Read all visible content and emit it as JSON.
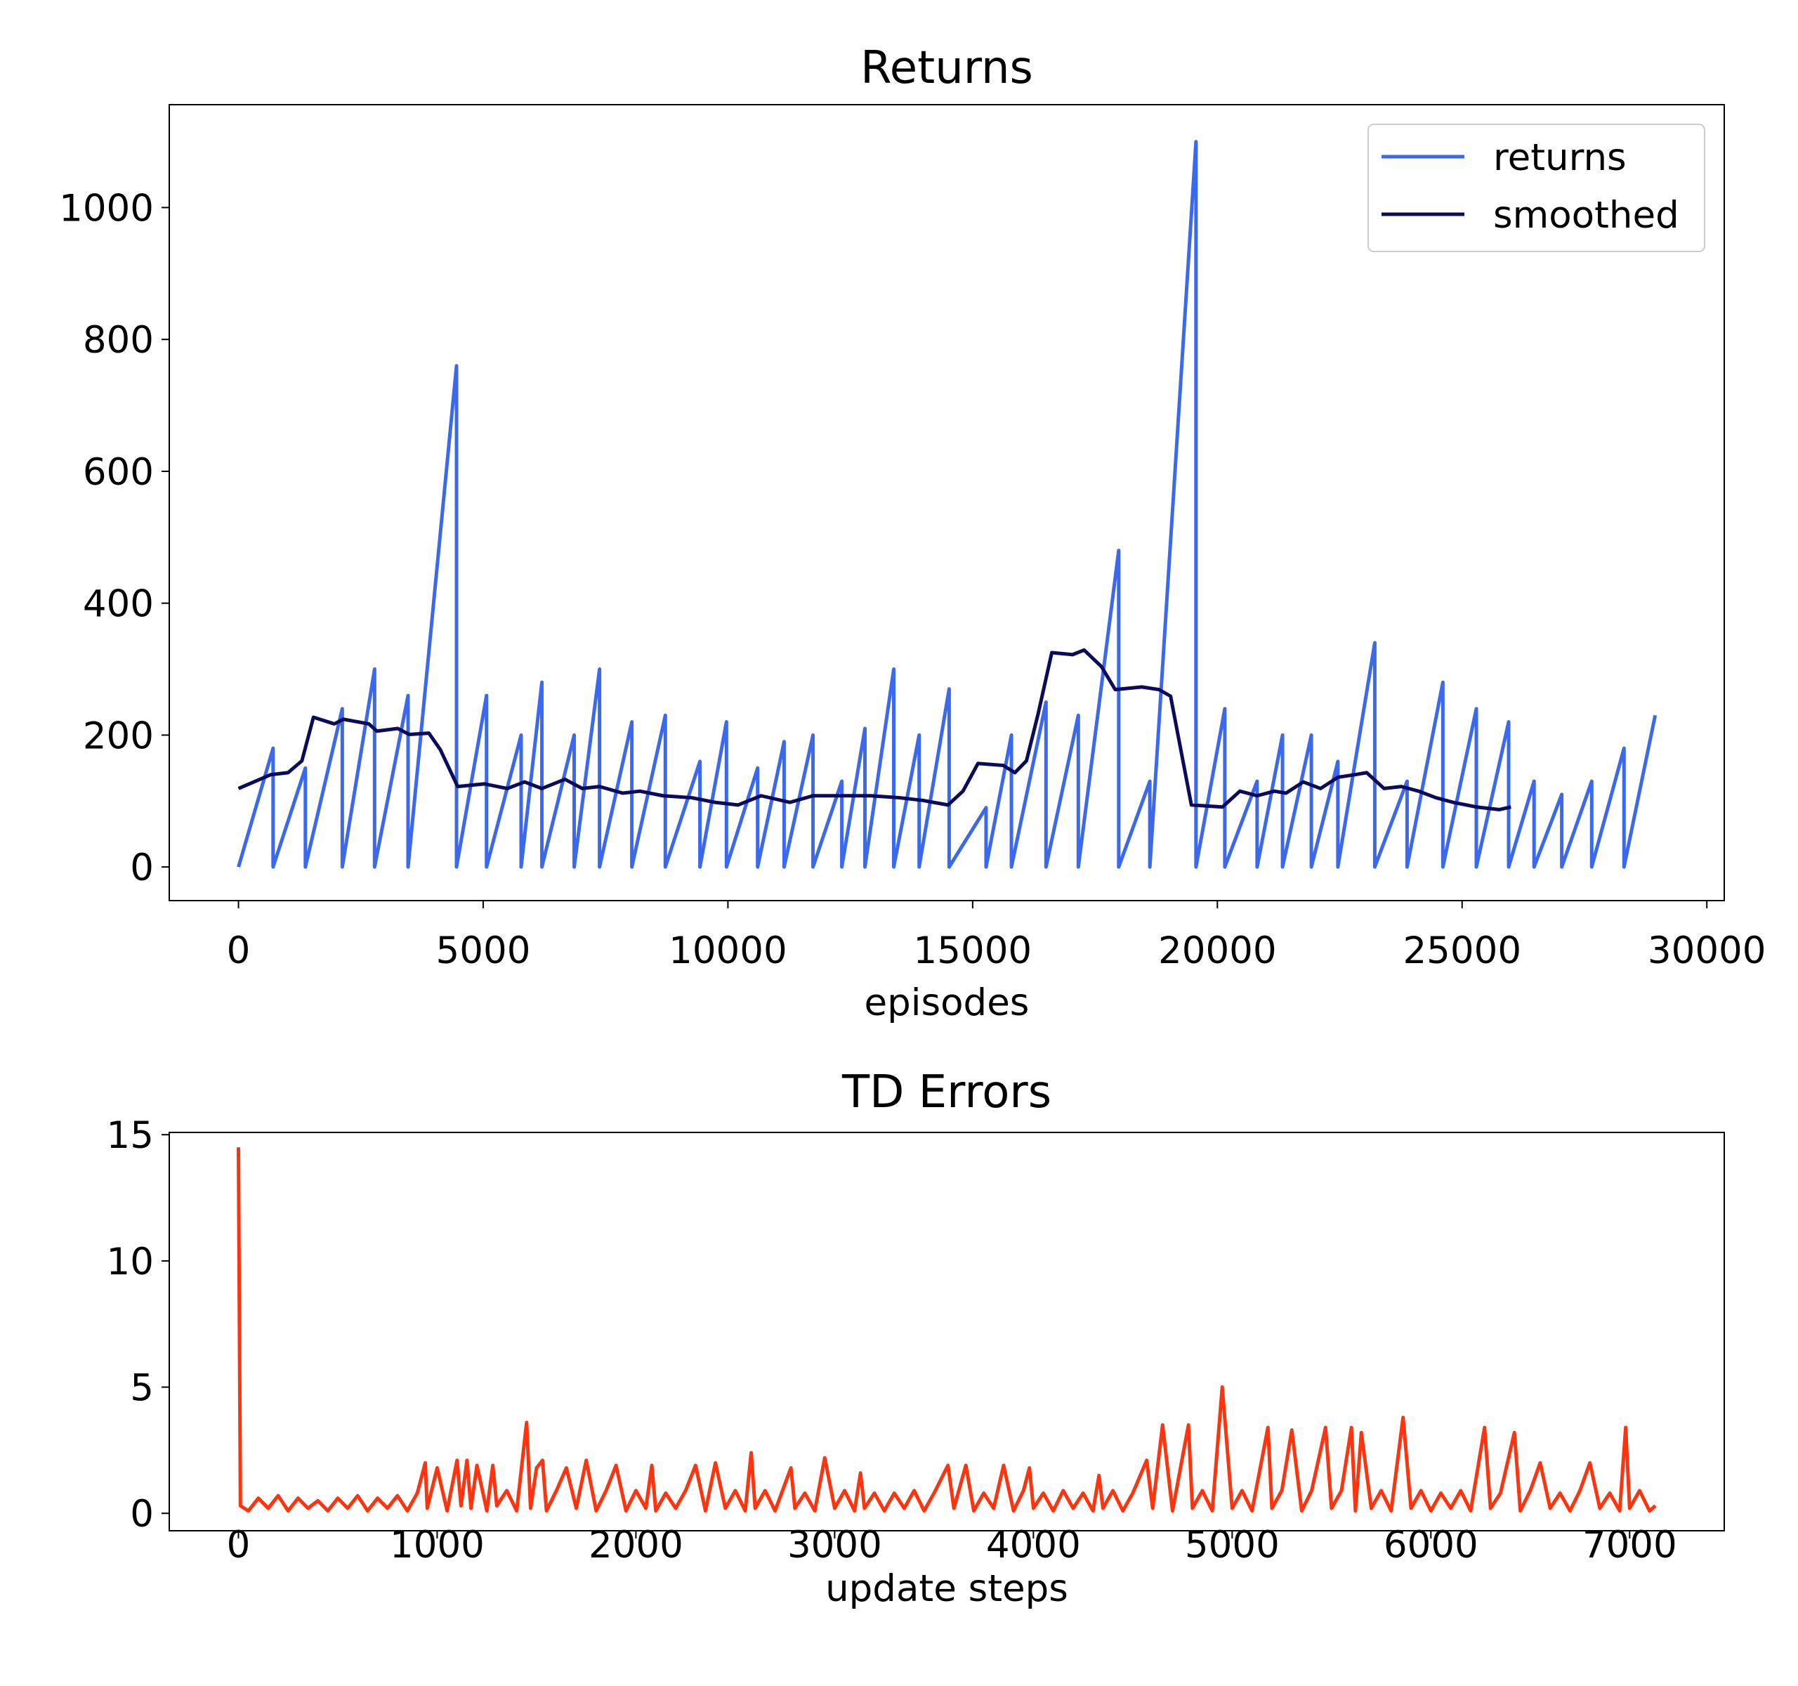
{
  "chart_data": [
    {
      "type": "line",
      "title": "Returns",
      "xlabel": "episodes",
      "xlim": [
        -1414,
        30356
      ],
      "ylim": [
        -51,
        1156
      ],
      "xticks": [
        0,
        5000,
        10000,
        15000,
        20000,
        25000,
        30000
      ],
      "yticks": [
        0,
        200,
        400,
        600,
        800,
        1000
      ],
      "grid": false,
      "legend": "upper right",
      "series": [
        {
          "name": "returns",
          "color": "#3a68ee",
          "x": [
            0,
            707,
            707,
            1367,
            1367,
            2121,
            2121,
            2781,
            2781,
            3465,
            3465,
            4455,
            4455,
            5068,
            5068,
            5775,
            5775,
            6199,
            6199,
            6859,
            6859,
            7377,
            7377,
            8037,
            8037,
            8721,
            8721,
            9428,
            9428,
            9970,
            9970,
            10607,
            10607,
            11148,
            11148,
            11738,
            11738,
            12327,
            12327,
            12799,
            12799,
            13388,
            13388,
            13907,
            13907,
            14520,
            14520,
            15274,
            15274,
            15792,
            15792,
            16499,
            16499,
            17159,
            17159,
            17984,
            17984,
            18620,
            18620,
            19563,
            19563,
            20152,
            20152,
            20812,
            20812,
            21331,
            21331,
            21920,
            21920,
            22462,
            22462,
            23216,
            23216,
            23876,
            23876,
            24607,
            24607,
            25291,
            25291,
            25951,
            25951,
            26470,
            26470,
            27036,
            27036,
            27648,
            27648,
            28308,
            28308,
            28945
          ],
          "values": [
            0,
            180,
            0,
            150,
            0,
            240,
            0,
            300,
            0,
            260,
            0,
            760,
            0,
            260,
            0,
            200,
            0,
            280,
            0,
            200,
            0,
            300,
            0,
            220,
            0,
            230,
            0,
            160,
            0,
            220,
            0,
            150,
            0,
            190,
            0,
            200,
            0,
            130,
            0,
            210,
            0,
            300,
            0,
            200,
            0,
            270,
            0,
            90,
            0,
            200,
            0,
            250,
            0,
            230,
            0,
            480,
            0,
            130,
            0,
            1100,
            0,
            240,
            0,
            130,
            0,
            200,
            0,
            200,
            0,
            160,
            0,
            340,
            0,
            130,
            0,
            280,
            0,
            240,
            0,
            220,
            0,
            130,
            0,
            110,
            0,
            130,
            0,
            180,
            0,
            230
          ]
        },
        {
          "name": "smoothed",
          "color": "#0b0b5c",
          "x": [
            0,
            660,
            1013,
            1296,
            1532,
            1956,
            2145,
            2663,
            2828,
            3253,
            3488,
            3889,
            4124,
            4478,
            5020,
            5492,
            5845,
            6199,
            6670,
            7024,
            7377,
            7849,
            8202,
            8673,
            9263,
            9735,
            10206,
            10678,
            11267,
            11738,
            12327,
            12916,
            13506,
            13977,
            14496,
            14802,
            15109,
            15627,
            15863,
            16099,
            16334,
            16617,
            17041,
            17277,
            17630,
            17913,
            18455,
            18809,
            19044,
            19469,
            20105,
            20459,
            20812,
            21166,
            21402,
            21755,
            22108,
            22462,
            22815,
            23051,
            23405,
            23758,
            24112,
            24466,
            24819,
            25291,
            25762,
            25998
          ],
          "values": [
            119,
            140,
            143,
            161,
            227,
            217,
            224,
            217,
            206,
            210,
            201,
            203,
            178,
            122,
            126,
            119,
            129,
            119,
            133,
            119,
            122,
            112,
            115,
            108,
            105,
            98,
            94,
            108,
            98,
            108,
            108,
            108,
            105,
            101,
            94,
            115,
            157,
            154,
            143,
            161,
            231,
            325,
            322,
            329,
            304,
            269,
            273,
            269,
            259,
            94,
            91,
            115,
            108,
            115,
            112,
            129,
            119,
            136,
            140,
            143,
            119,
            122,
            115,
            105,
            98,
            91,
            87,
            91
          ]
        }
      ]
    },
    {
      "type": "line",
      "title": "TD Errors",
      "xlabel": "update steps",
      "xlim": [
        -348,
        7476
      ],
      "ylim": [
        -0.69,
        15.09
      ],
      "xticks": [
        0,
        1000,
        2000,
        3000,
        4000,
        5000,
        6000,
        7000
      ],
      "yticks": [
        0,
        5,
        10,
        15
      ],
      "grid": false,
      "series": [
        {
          "color": "#ff330d",
          "x": [
            0,
            10,
            50,
            100,
            150,
            200,
            250,
            300,
            350,
            400,
            450,
            500,
            550,
            600,
            650,
            700,
            750,
            800,
            850,
            900,
            940,
            950,
            1000,
            1050,
            1100,
            1120,
            1150,
            1170,
            1200,
            1250,
            1280,
            1300,
            1350,
            1400,
            1450,
            1470,
            1500,
            1530,
            1550,
            1600,
            1650,
            1700,
            1750,
            1800,
            1850,
            1900,
            1950,
            2000,
            2050,
            2080,
            2100,
            2150,
            2200,
            2250,
            2300,
            2350,
            2400,
            2450,
            2500,
            2550,
            2580,
            2600,
            2650,
            2700,
            2780,
            2800,
            2850,
            2900,
            2950,
            3000,
            3050,
            3100,
            3130,
            3150,
            3200,
            3250,
            3300,
            3350,
            3400,
            3450,
            3500,
            3570,
            3600,
            3660,
            3700,
            3750,
            3800,
            3850,
            3900,
            3950,
            3980,
            4000,
            4050,
            4100,
            4150,
            4200,
            4250,
            4300,
            4330,
            4350,
            4400,
            4450,
            4500,
            4570,
            4600,
            4650,
            4700,
            4780,
            4800,
            4850,
            4900,
            4950,
            5000,
            5050,
            5100,
            5180,
            5200,
            5250,
            5300,
            5350,
            5400,
            5470,
            5500,
            5550,
            5600,
            5620,
            5650,
            5700,
            5750,
            5800,
            5860,
            5900,
            5950,
            6000,
            6050,
            6100,
            6150,
            6200,
            6270,
            6300,
            6350,
            6420,
            6450,
            6500,
            6550,
            6600,
            6650,
            6700,
            6750,
            6800,
            6850,
            6900,
            6950,
            6980,
            7000,
            7050,
            7100,
            7130
          ],
          "values": [
            14.5,
            0.3,
            0.1,
            0.6,
            0.2,
            0.7,
            0.1,
            0.6,
            0.2,
            0.5,
            0.1,
            0.6,
            0.2,
            0.7,
            0.1,
            0.6,
            0.2,
            0.7,
            0.1,
            0.8,
            2.0,
            0.2,
            1.8,
            0.1,
            2.1,
            0.3,
            2.1,
            0.2,
            1.9,
            0.1,
            1.9,
            0.3,
            0.9,
            0.1,
            3.6,
            0.2,
            1.8,
            2.1,
            0.1,
            0.9,
            1.8,
            0.2,
            2.1,
            0.1,
            0.9,
            1.9,
            0.1,
            0.9,
            0.2,
            1.9,
            0.1,
            0.8,
            0.2,
            0.9,
            1.9,
            0.1,
            2.0,
            0.2,
            0.9,
            0.1,
            2.4,
            0.2,
            0.9,
            0.1,
            1.8,
            0.2,
            0.8,
            0.1,
            2.2,
            0.2,
            0.9,
            0.1,
            1.6,
            0.2,
            0.8,
            0.1,
            0.8,
            0.2,
            0.9,
            0.1,
            0.8,
            1.9,
            0.2,
            1.9,
            0.1,
            0.8,
            0.2,
            1.9,
            0.1,
            0.9,
            1.8,
            0.2,
            0.8,
            0.1,
            0.9,
            0.2,
            0.8,
            0.1,
            1.5,
            0.2,
            0.9,
            0.1,
            0.8,
            2.1,
            0.2,
            3.5,
            0.1,
            3.5,
            0.2,
            0.9,
            0.1,
            5.0,
            0.2,
            0.9,
            0.1,
            3.4,
            0.2,
            0.9,
            3.3,
            0.1,
            0.9,
            3.4,
            0.2,
            0.9,
            3.4,
            0.1,
            3.2,
            0.2,
            0.9,
            0.1,
            3.8,
            0.2,
            0.9,
            0.1,
            0.8,
            0.2,
            0.9,
            0.1,
            3.4,
            0.2,
            0.8,
            3.2,
            0.1,
            0.9,
            2.0,
            0.2,
            0.8,
            0.1,
            0.9,
            2.0,
            0.2,
            0.8,
            0.1,
            3.4,
            0.2,
            0.9,
            0.1,
            0.3
          ]
        }
      ]
    }
  ]
}
